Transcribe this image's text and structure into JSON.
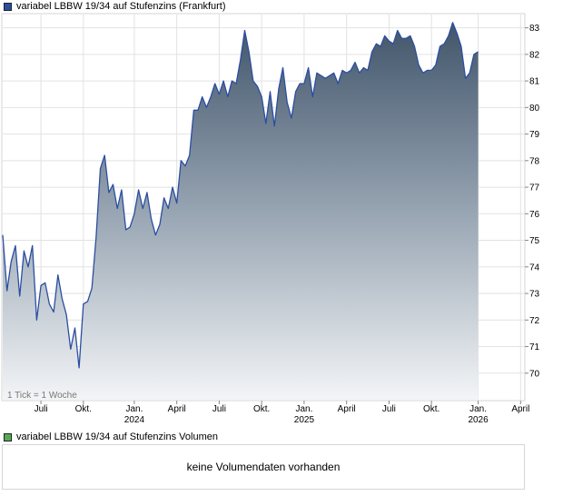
{
  "legend": {
    "price_label": "variabel LBBW 19/34 auf Stufenzins (Frankfurt)",
    "price_color": "#2b4ea0",
    "volume_label": "variabel LBBW 19/34 auf Stufenzins Volumen",
    "volume_color": "#55aa55"
  },
  "tick_note": "1 Tick = 1 Woche",
  "volume_panel": {
    "empty_text": "keine Volumendaten vorhanden"
  },
  "chart_data": {
    "type": "area",
    "ylim": [
      69,
      83.5
    ],
    "xlim": [
      0,
      123
    ],
    "y_ticks": [
      70,
      71,
      72,
      73,
      74,
      75,
      76,
      77,
      78,
      79,
      80,
      81,
      82,
      83
    ],
    "x_ticks": [
      {
        "pos": 9,
        "label": "Juli",
        "year": ""
      },
      {
        "pos": 19,
        "label": "Okt.",
        "year": ""
      },
      {
        "pos": 31,
        "label": "Jan.",
        "year": "2024"
      },
      {
        "pos": 41,
        "label": "April",
        "year": ""
      },
      {
        "pos": 51,
        "label": "Juli",
        "year": ""
      },
      {
        "pos": 61,
        "label": "Okt.",
        "year": ""
      },
      {
        "pos": 71,
        "label": "Jan.",
        "year": "2025"
      },
      {
        "pos": 81,
        "label": "April",
        "year": ""
      },
      {
        "pos": 91,
        "label": "Juli",
        "year": ""
      },
      {
        "pos": 101,
        "label": "Okt.",
        "year": ""
      },
      {
        "pos": 112,
        "label": "Jan.",
        "year": "2026"
      },
      {
        "pos": 122,
        "label": "April",
        "year": ""
      }
    ],
    "series": [
      {
        "values": [
          75.2,
          73.1,
          74.2,
          74.8,
          72.9,
          74.6,
          74.0,
          74.8,
          72.0,
          73.3,
          73.4,
          72.6,
          72.3,
          73.7,
          72.8,
          72.2,
          70.9,
          71.7,
          70.2,
          72.6,
          72.7,
          73.2,
          75.1,
          77.7,
          78.2,
          76.8,
          77.1,
          76.2,
          76.9,
          75.4,
          75.5,
          76.0,
          76.9,
          76.2,
          76.8,
          75.8,
          75.2,
          75.6,
          76.6,
          76.2,
          77.0,
          76.4,
          78.0,
          77.8,
          78.2,
          79.9,
          79.9,
          80.4,
          80.0,
          80.4,
          80.9,
          80.5,
          81.0,
          80.4,
          81.0,
          80.9,
          81.8,
          82.9,
          82.1,
          81.0,
          80.8,
          80.4,
          79.4,
          80.6,
          79.3,
          80.7,
          81.5,
          80.2,
          79.6,
          80.6,
          80.9,
          80.9,
          81.5,
          80.4,
          81.3,
          81.2,
          81.1,
          81.2,
          81.3,
          80.9,
          81.4,
          81.3,
          81.4,
          81.7,
          81.3,
          81.5,
          81.4,
          82.1,
          82.4,
          82.3,
          82.7,
          82.5,
          82.4,
          82.9,
          82.6,
          82.6,
          82.7,
          82.3,
          81.6,
          81.3,
          81.4,
          81.4,
          81.6,
          82.3,
          82.4,
          82.7,
          83.2,
          82.8,
          82.3,
          81.1,
          81.3,
          82.0,
          82.1
        ]
      }
    ]
  }
}
